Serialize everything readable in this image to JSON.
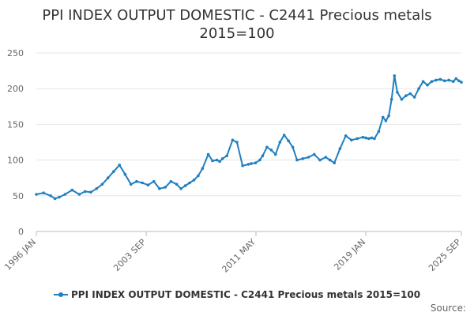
{
  "chart_data": {
    "type": "line",
    "title": [
      "PPI INDEX OUTPUT DOMESTIC - C2441 Precious metals",
      "2015=100"
    ],
    "xlabel": "",
    "ylabel": "",
    "x_range": [
      1996.0,
      2025.67
    ],
    "ylim": [
      0,
      250
    ],
    "y_ticks": [
      0,
      50,
      100,
      150,
      200,
      250
    ],
    "x_ticks": [
      {
        "label": "1996 JAN",
        "x": 1996.0
      },
      {
        "label": "2003 SEP",
        "x": 2003.67
      },
      {
        "label": "2011 MAY",
        "x": 2011.33
      },
      {
        "label": "2019 JAN",
        "x": 2019.0
      },
      {
        "label": "2025 SEP",
        "x": 2025.67
      }
    ],
    "grid": "horizontal",
    "legend_position": "bottom-center",
    "series": [
      {
        "name": "PPI INDEX OUTPUT DOMESTIC - C2441 Precious metals 2015=100",
        "color": "#1f7fc0",
        "x": [
          1996.0,
          1996.5,
          1997.0,
          1997.3,
          1997.6,
          1998.0,
          1998.5,
          1999.0,
          1999.4,
          1999.8,
          2000.2,
          2000.6,
          2001.0,
          2001.4,
          2001.8,
          2002.2,
          2002.6,
          2003.0,
          2003.4,
          2003.8,
          2004.2,
          2004.6,
          2005.0,
          2005.4,
          2005.8,
          2006.1,
          2006.4,
          2006.7,
          2007.0,
          2007.3,
          2007.6,
          2008.0,
          2008.3,
          2008.6,
          2008.8,
          2009.0,
          2009.3,
          2009.7,
          2010.0,
          2010.4,
          2010.8,
          2011.0,
          2011.3,
          2011.6,
          2011.8,
          2012.1,
          2012.4,
          2012.7,
          2013.0,
          2013.3,
          2013.6,
          2013.9,
          2014.2,
          2014.6,
          2015.0,
          2015.4,
          2015.8,
          2016.2,
          2016.5,
          2016.8,
          2017.2,
          2017.6,
          2018.0,
          2018.4,
          2018.8,
          2019.0,
          2019.2,
          2019.4,
          2019.6,
          2019.9,
          2020.2,
          2020.4,
          2020.6,
          2020.8,
          2021.0,
          2021.2,
          2021.5,
          2021.8,
          2022.1,
          2022.4,
          2022.7,
          2023.0,
          2023.3,
          2023.6,
          2023.9,
          2024.2,
          2024.5,
          2024.8,
          2025.1,
          2025.3,
          2025.5,
          2025.67
        ],
        "values": [
          52,
          54,
          50,
          46,
          48,
          52,
          58,
          52,
          56,
          55,
          60,
          66,
          75,
          84,
          93,
          80,
          66,
          70,
          68,
          65,
          70,
          60,
          62,
          70,
          66,
          60,
          64,
          68,
          72,
          78,
          88,
          108,
          99,
          100,
          98,
          102,
          106,
          128,
          125,
          92,
          94,
          95,
          96,
          100,
          106,
          118,
          114,
          108,
          125,
          135,
          127,
          118,
          100,
          102,
          104,
          108,
          100,
          104,
          100,
          96,
          116,
          134,
          128,
          130,
          132,
          131,
          130,
          131,
          130,
          140,
          160,
          155,
          162,
          185,
          218,
          195,
          185,
          190,
          193,
          188,
          200,
          210,
          205,
          210,
          212,
          213,
          211,
          212,
          210,
          214,
          211,
          209
        ]
      }
    ],
    "legend_label": "PPI INDEX OUTPUT DOMESTIC - C2441 Precious metals 2015=100",
    "source_label": "Source:"
  }
}
